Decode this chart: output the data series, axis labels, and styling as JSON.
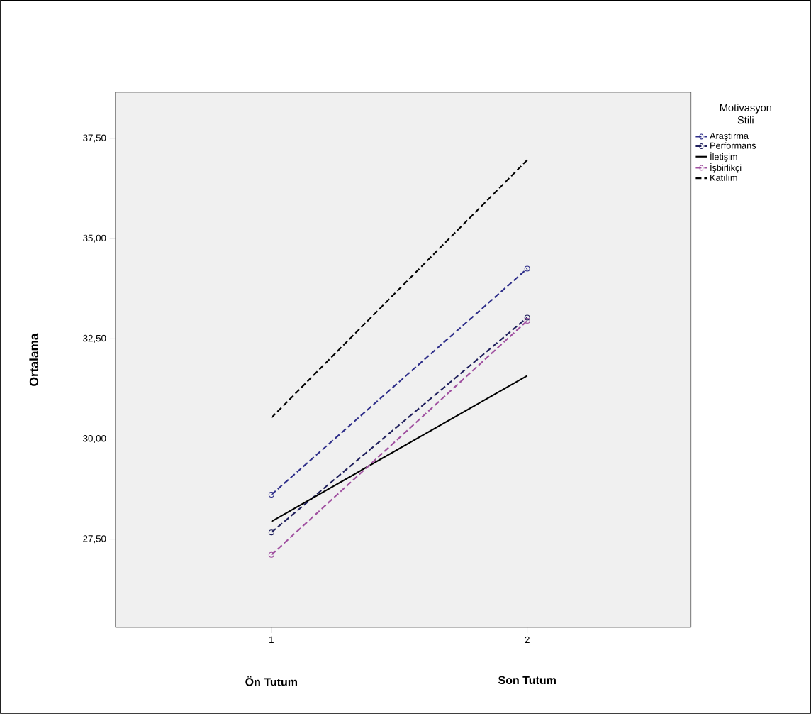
{
  "chart_data": {
    "type": "line",
    "ylabel": "Ortalama",
    "legend_title": "Motivasyon Stili",
    "legend": "right",
    "categories": [
      "1",
      "2"
    ],
    "annotations": [
      "Ön Tutum",
      "Son Tutum"
    ],
    "ylim": [
      25.3,
      38.65
    ],
    "yticks": [
      {
        "value": 27.5,
        "label": "27,50"
      },
      {
        "value": 30,
        "label": "30,00"
      },
      {
        "value": 32.5,
        "label": "32,50"
      },
      {
        "value": 35,
        "label": "35,00"
      },
      {
        "value": 37.5,
        "label": "37,50"
      }
    ],
    "grid": false,
    "series": [
      {
        "name": "Araştırma",
        "color": "#2e2e8a",
        "line_style": "dashed",
        "marker": "circle",
        "values": [
          28.61,
          34.25
        ]
      },
      {
        "name": "Performans",
        "color": "#1f1f5c",
        "line_style": "dashed",
        "marker": "circle",
        "values": [
          27.67,
          33.03
        ]
      },
      {
        "name": "İletişim",
        "color": "#000000",
        "line_style": "solid",
        "marker": "none",
        "values": [
          27.94,
          31.58
        ]
      },
      {
        "name": "İşbirlikçi",
        "color": "#a050a0",
        "line_style": "dashed",
        "marker": "circle",
        "values": [
          27.11,
          32.95
        ]
      },
      {
        "name": "Katılım",
        "color": "#000000",
        "line_style": "dashed",
        "marker": "none",
        "values": [
          30.53,
          36.96
        ]
      }
    ]
  }
}
